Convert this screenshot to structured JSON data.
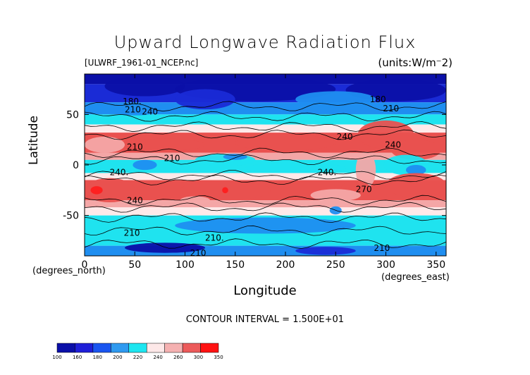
{
  "chart_data": {
    "type": "heatmap",
    "title": "Upward Longwave Radiation Flux",
    "file_label": "[ULWRF_1961-01_NCEP.nc]",
    "units_label": "(units:W/m^2)",
    "xlabel": "Longitude",
    "ylabel": "Latitude",
    "x_unit_note": "(degrees_east)",
    "y_unit_note": "(degrees_north)",
    "xlim": [
      0,
      360
    ],
    "ylim": [
      -90,
      90
    ],
    "x_ticks": [
      "0",
      "50",
      "100",
      "150",
      "200",
      "250",
      "300",
      "350"
    ],
    "y_ticks": [
      "50",
      "0",
      "-50"
    ],
    "x_tick_values": [
      0,
      50,
      100,
      150,
      200,
      250,
      300,
      350
    ],
    "y_tick_values": [
      50,
      0,
      -50
    ],
    "contour_interval_text": "CONTOUR INTERVAL = 1.500E+01",
    "contour_labels": [
      {
        "text": "180.",
        "lon": 38,
        "lat": 60
      },
      {
        "text": "210",
        "lon": 40,
        "lat": 52
      },
      {
        "text": "240",
        "lon": 57,
        "lat": 50
      },
      {
        "text": "180",
        "lon": 284,
        "lat": 62
      },
      {
        "text": "210",
        "lon": 297,
        "lat": 53
      },
      {
        "text": "240",
        "lon": 251,
        "lat": 25
      },
      {
        "text": "240",
        "lon": 299,
        "lat": 17
      },
      {
        "text": "210",
        "lon": 42,
        "lat": 15
      },
      {
        "text": "210",
        "lon": 79,
        "lat": 4
      },
      {
        "text": "240.",
        "lon": 25,
        "lat": -10
      },
      {
        "text": "240.",
        "lon": 232,
        "lat": -10
      },
      {
        "text": "270",
        "lon": 270,
        "lat": -27
      },
      {
        "text": "240",
        "lon": 42,
        "lat": -38
      },
      {
        "text": "210",
        "lon": 39,
        "lat": -70
      },
      {
        "text": "210.",
        "lon": 120,
        "lat": -75
      },
      {
        "text": "210",
        "lon": 288,
        "lat": -85
      },
      {
        "text": "210",
        "lon": 105,
        "lat": -90
      }
    ],
    "colorbar": {
      "levels": [
        "100",
        "160",
        "180",
        "200",
        "220",
        "240",
        "260",
        "300",
        "350"
      ],
      "colors": [
        "#0b0fa8",
        "#1f1fd8",
        "#1a55f0",
        "#2f9af0",
        "#1ee6f0",
        "#fde8e8",
        "#f5b1b1",
        "#ec5a5a",
        "#ff1212"
      ]
    },
    "field_colors": {
      "polar_north": "#1a2bd6",
      "deep_blue": "#0b10a8",
      "cold": "#1f8ef0",
      "cyan": "#1fe3ef",
      "white": "#ffe9e9",
      "pink": "#f4a6a6",
      "red": "#e9514f",
      "hot": "#ff1d1d"
    }
  }
}
